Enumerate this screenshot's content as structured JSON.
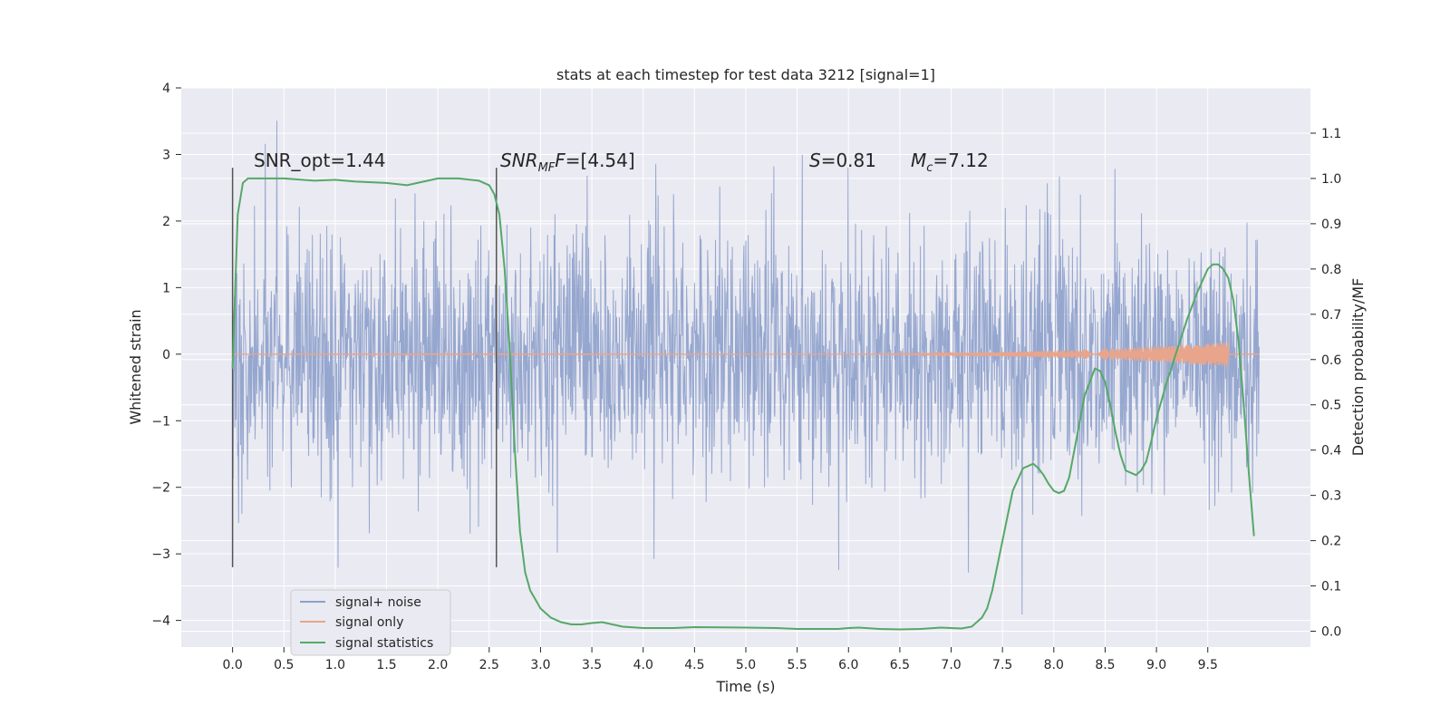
{
  "chart_data": {
    "type": "line",
    "title": "stats at each timestep for test data 3212 [signal=1]",
    "xlabel": "Time (s)",
    "ylabel": "Whitened strain",
    "y2label": "Detection probability/MF",
    "xlim": [
      -0.5,
      10.5
    ],
    "ylim": [
      -4.4,
      4.0
    ],
    "y2lim": [
      -0.035,
      1.2
    ],
    "xticks": [
      "0.0",
      "0.5",
      "1.0",
      "1.5",
      "2.0",
      "2.5",
      "3.0",
      "3.5",
      "4.0",
      "4.5",
      "5.0",
      "5.5",
      "6.0",
      "6.5",
      "7.0",
      "7.5",
      "8.0",
      "8.5",
      "9.0",
      "9.5"
    ],
    "yticks": [
      "−4",
      "−3",
      "−2",
      "−1",
      "0",
      "1",
      "2",
      "3",
      "4"
    ],
    "y2ticks": [
      "0.0",
      "0.1",
      "0.2",
      "0.3",
      "0.4",
      "0.5",
      "0.6",
      "0.7",
      "0.8",
      "0.9",
      "1.0",
      "1.1"
    ],
    "grid": true,
    "legend_position": "lower-left",
    "colors": {
      "noise": "#8da0cb",
      "signal": "#e8a58c",
      "stats": "#55a868",
      "marker": "#555555",
      "background": "#eaeaf2"
    },
    "series": [
      {
        "name": "signal+ noise",
        "description_axis": "left",
        "x_range": [
          0.0,
          10.0
        ],
        "typical_envelope": [
          -1.9,
          2.0
        ],
        "extreme_range": [
          -4.05,
          3.6
        ]
      },
      {
        "name": "signal only",
        "description_axis": "left",
        "x_range": [
          0.0,
          10.0
        ],
        "chirp_start": 5.5,
        "chirp_peak_time": 9.7,
        "chirp_peak_amplitude": 0.18
      },
      {
        "name": "signal statistics",
        "description_axis": "right",
        "x": [
          0.0,
          0.05,
          0.1,
          0.15,
          0.2,
          0.3,
          0.5,
          0.8,
          1.0,
          1.2,
          1.5,
          1.7,
          1.9,
          2.0,
          2.2,
          2.4,
          2.5,
          2.55,
          2.6,
          2.65,
          2.7,
          2.75,
          2.8,
          2.85,
          2.9,
          2.95,
          3.0,
          3.1,
          3.2,
          3.3,
          3.4,
          3.5,
          3.6,
          3.7,
          3.8,
          4.0,
          4.3,
          4.5,
          5.0,
          5.3,
          5.5,
          5.7,
          5.9,
          6.0,
          6.1,
          6.3,
          6.5,
          6.7,
          6.9,
          7.0,
          7.1,
          7.2,
          7.3,
          7.35,
          7.4,
          7.5,
          7.6,
          7.7,
          7.8,
          7.85,
          7.9,
          7.95,
          8.0,
          8.05,
          8.1,
          8.15,
          8.2,
          8.3,
          8.4,
          8.45,
          8.5,
          8.55,
          8.6,
          8.65,
          8.7,
          8.8,
          8.85,
          8.9,
          8.95,
          9.0,
          9.1,
          9.2,
          9.3,
          9.4,
          9.5,
          9.55,
          9.6,
          9.65,
          9.7,
          9.75,
          9.8,
          9.85,
          9.9,
          9.95
        ],
        "values": [
          0.58,
          0.92,
          0.99,
          1.0,
          1.0,
          1.0,
          1.0,
          0.995,
          0.997,
          0.993,
          0.99,
          0.985,
          0.995,
          1.0,
          1.0,
          0.995,
          0.985,
          0.965,
          0.92,
          0.8,
          0.62,
          0.4,
          0.22,
          0.13,
          0.09,
          0.07,
          0.05,
          0.03,
          0.02,
          0.015,
          0.015,
          0.018,
          0.02,
          0.015,
          0.01,
          0.007,
          0.007,
          0.009,
          0.008,
          0.007,
          0.005,
          0.005,
          0.005,
          0.007,
          0.008,
          0.005,
          0.004,
          0.005,
          0.008,
          0.007,
          0.006,
          0.01,
          0.03,
          0.05,
          0.09,
          0.2,
          0.31,
          0.36,
          0.37,
          0.36,
          0.345,
          0.325,
          0.31,
          0.305,
          0.31,
          0.34,
          0.4,
          0.52,
          0.58,
          0.575,
          0.55,
          0.5,
          0.44,
          0.39,
          0.355,
          0.345,
          0.355,
          0.375,
          0.42,
          0.47,
          0.55,
          0.62,
          0.69,
          0.75,
          0.8,
          0.81,
          0.81,
          0.8,
          0.78,
          0.73,
          0.64,
          0.5,
          0.35,
          0.21
        ]
      }
    ],
    "vlines": [
      0.0,
      2.57
    ],
    "vline_range": [
      -3.2,
      2.8
    ],
    "annotations": {
      "snr_opt": "SNR_opt=1.44",
      "snr_mf_symbol": "SNR",
      "snr_mf_sub": "MF",
      "snr_mf_rest": "=[4.54]",
      "s_symbol": "S",
      "s_rest": "=0.81",
      "mc_symbol": "M",
      "mc_sub": "c",
      "mc_rest": "=7.12"
    }
  }
}
